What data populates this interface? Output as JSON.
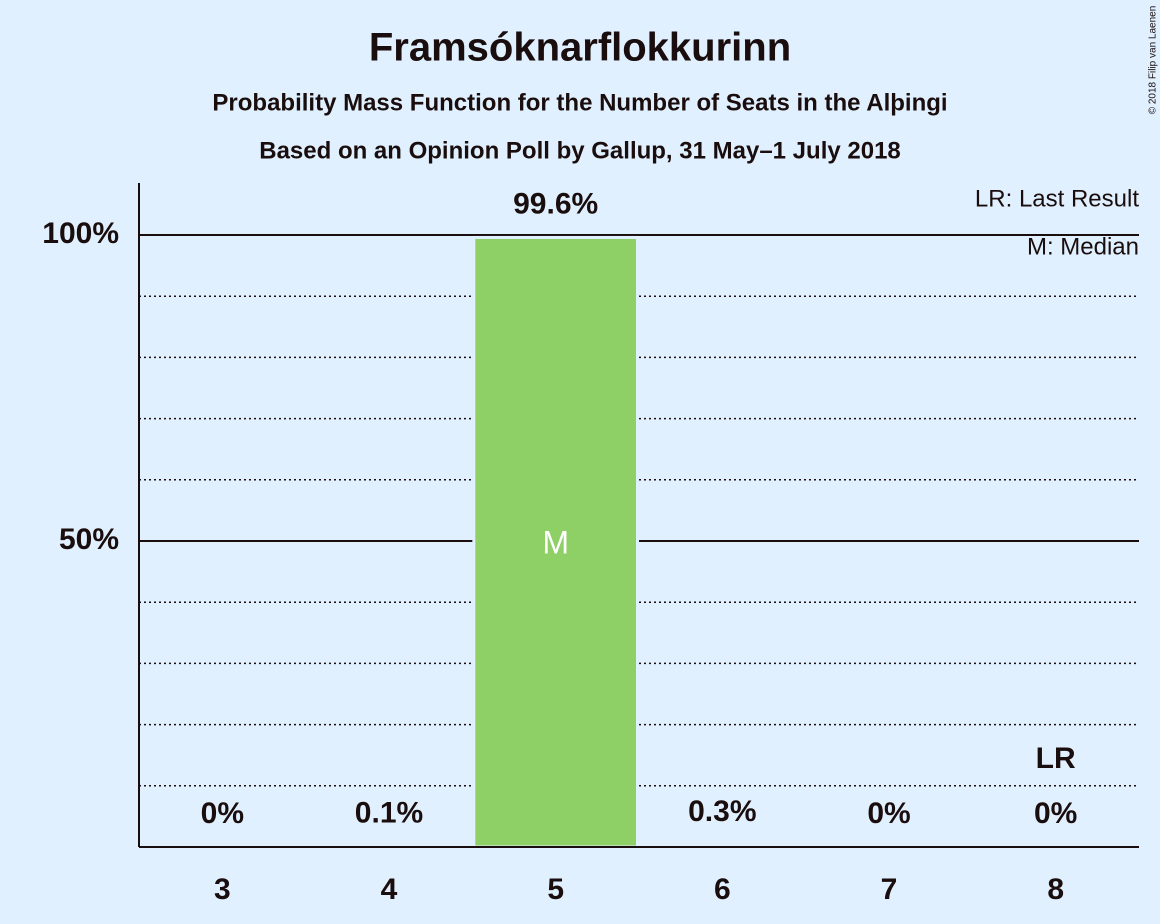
{
  "chart_data": {
    "type": "bar",
    "title": "Framsóknarflokkurinn",
    "subtitles": [
      "Probability Mass Function for the Number of Seats in the Alþingi",
      "Based on an Opinion Poll by Gallup, 31 May–1 July 2018"
    ],
    "categories": [
      "3",
      "4",
      "5",
      "6",
      "7",
      "8"
    ],
    "values": [
      0,
      0.1,
      99.6,
      0.3,
      0,
      0
    ],
    "value_labels": [
      "0%",
      "0.1%",
      "99.6%",
      "0.3%",
      "0%",
      "0%"
    ],
    "color": "#8ecf66",
    "ylim": [
      0,
      108.5
    ],
    "yticks": [
      {
        "value": 50,
        "label": "50%"
      },
      {
        "value": 100,
        "label": "100%"
      }
    ],
    "minor_yticks": [
      10,
      20,
      30,
      40,
      60,
      70,
      80,
      90
    ],
    "grid": true,
    "annotations": [
      {
        "label": "M",
        "category": "5"
      },
      {
        "label": "LR",
        "category": "8"
      }
    ],
    "legend": [
      "LR: Last Result",
      "M: Median"
    ],
    "legend_position": "top-right",
    "credit": "© 2018 Filip van Laenen"
  }
}
